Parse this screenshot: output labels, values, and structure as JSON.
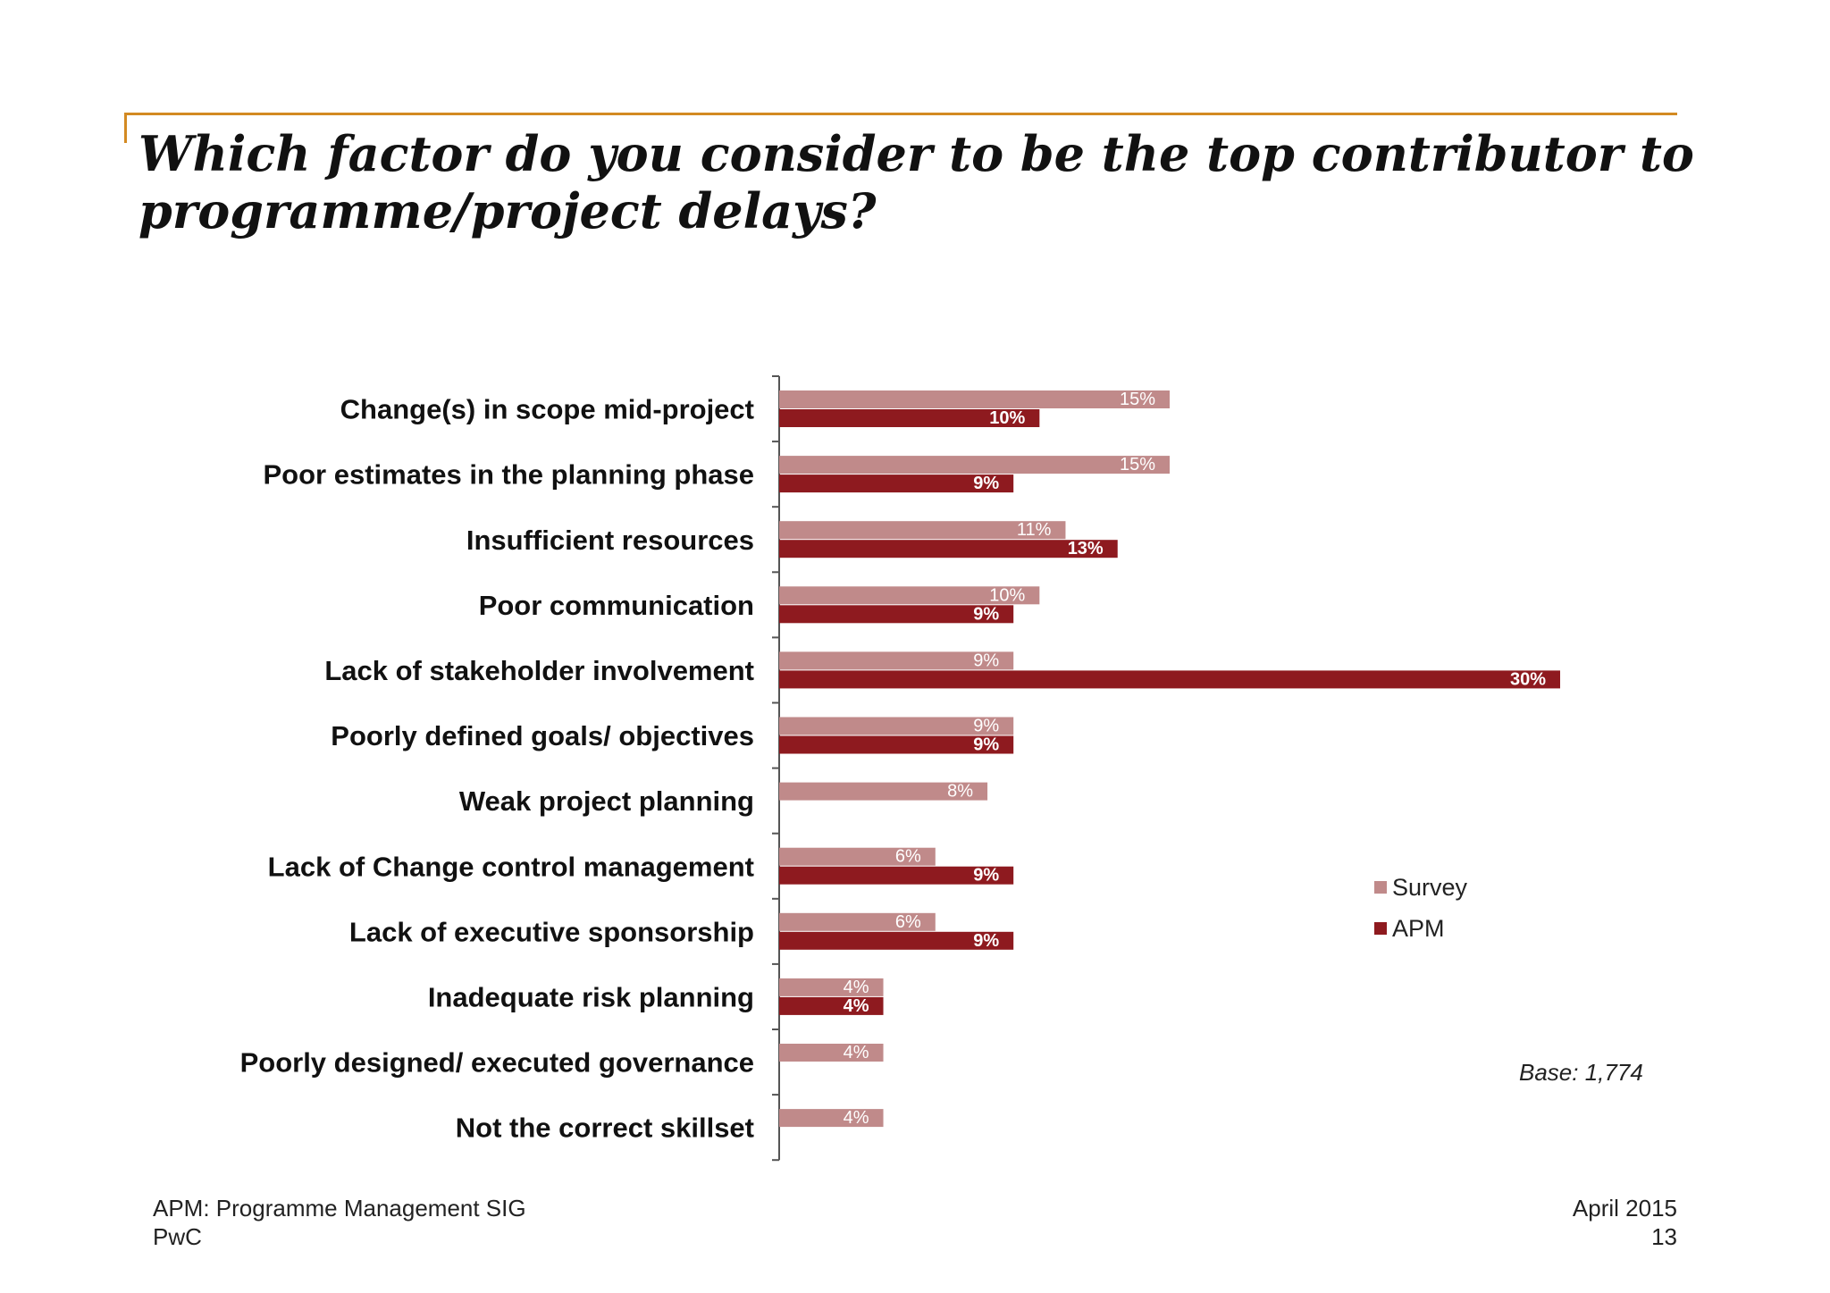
{
  "slide": {
    "title_line1": "Which factor do you consider to be the top contributor to",
    "title_line2": "programme/project delays?",
    "base_note": "Base: 1,774",
    "footer_left_line1": "APM: Programme Management SIG",
    "footer_left_line2": "PwC",
    "footer_right_line1": "April 2015",
    "footer_right_line2": "13",
    "accent_color": "#d38a22"
  },
  "chart_data": {
    "type": "bar",
    "orientation": "horizontal",
    "categories": [
      "Change(s) in scope mid-project",
      "Poor estimates in the planning phase",
      "Insufficient resources",
      "Poor communication",
      "Lack of stakeholder involvement",
      "Poorly defined goals/ objectives",
      "Weak project planning",
      "Lack of Change control management",
      "Lack of executive sponsorship",
      "Inadequate risk planning",
      "Poorly designed/ executed governance",
      "Not the correct skillset"
    ],
    "series": [
      {
        "name": "Survey",
        "color": "#c08a8a",
        "values": [
          15,
          15,
          11,
          10,
          9,
          9,
          8,
          6,
          6,
          4,
          4,
          4
        ],
        "labels": [
          "15%",
          "15%",
          "11%",
          "10%",
          "9%",
          "9%",
          "8%",
          "6%",
          "6%",
          "4%",
          "4%",
          "4%"
        ]
      },
      {
        "name": "APM",
        "color": "#8e1a1f",
        "values": [
          10,
          9,
          13,
          9,
          30,
          9,
          null,
          9,
          9,
          4,
          null,
          null
        ],
        "labels": [
          "10%",
          "9%",
          "13%",
          "9%",
          "30%",
          "9%",
          null,
          "9%",
          "9%",
          "4%",
          null,
          null
        ]
      }
    ],
    "xlim": [
      0,
      30
    ],
    "legend_position": "right",
    "grid": false
  }
}
